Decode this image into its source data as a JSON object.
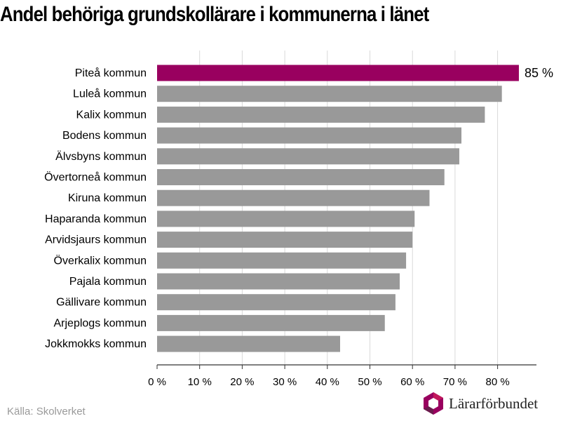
{
  "title": "Andel behöriga grundskollärare i kommunerna i länet",
  "source": "Källa: Skolverket",
  "logo": {
    "text": "Lärarförbundet",
    "icon": "lararforbundet-logo-icon"
  },
  "colors": {
    "highlight": "#99005f",
    "bar": "#999999",
    "grid": "#d9d9d9",
    "axis": "#333333"
  },
  "chart_data": {
    "type": "bar",
    "orientation": "horizontal",
    "categories": [
      "Piteå kommun",
      "Luleå kommun",
      "Kalix kommun",
      "Bodens kommun",
      "Älvsbyns kommun",
      "Övertorneå kommun",
      "Kiruna kommun",
      "Haparanda kommun",
      "Arvidsjaurs kommun",
      "Överkalix kommun",
      "Pajala kommun",
      "Gällivare kommun",
      "Arjeplogs kommun",
      "Jokkmokks kommun"
    ],
    "values": [
      85,
      81,
      77,
      71.5,
      71,
      67.5,
      64,
      60.5,
      60,
      58.5,
      57,
      56,
      53.5,
      43
    ],
    "highlight_index": 0,
    "data_labels": [
      {
        "index": 0,
        "text": "85 %"
      }
    ],
    "xlim": [
      0,
      90
    ],
    "xticks": [
      0,
      10,
      20,
      30,
      40,
      50,
      60,
      70,
      80
    ],
    "xtick_labels": [
      "0 %",
      "10 %",
      "20 %",
      "30 %",
      "40 %",
      "50 %",
      "60 %",
      "70 %",
      "80 %"
    ],
    "grid": true,
    "xlabel": "",
    "ylabel": ""
  }
}
